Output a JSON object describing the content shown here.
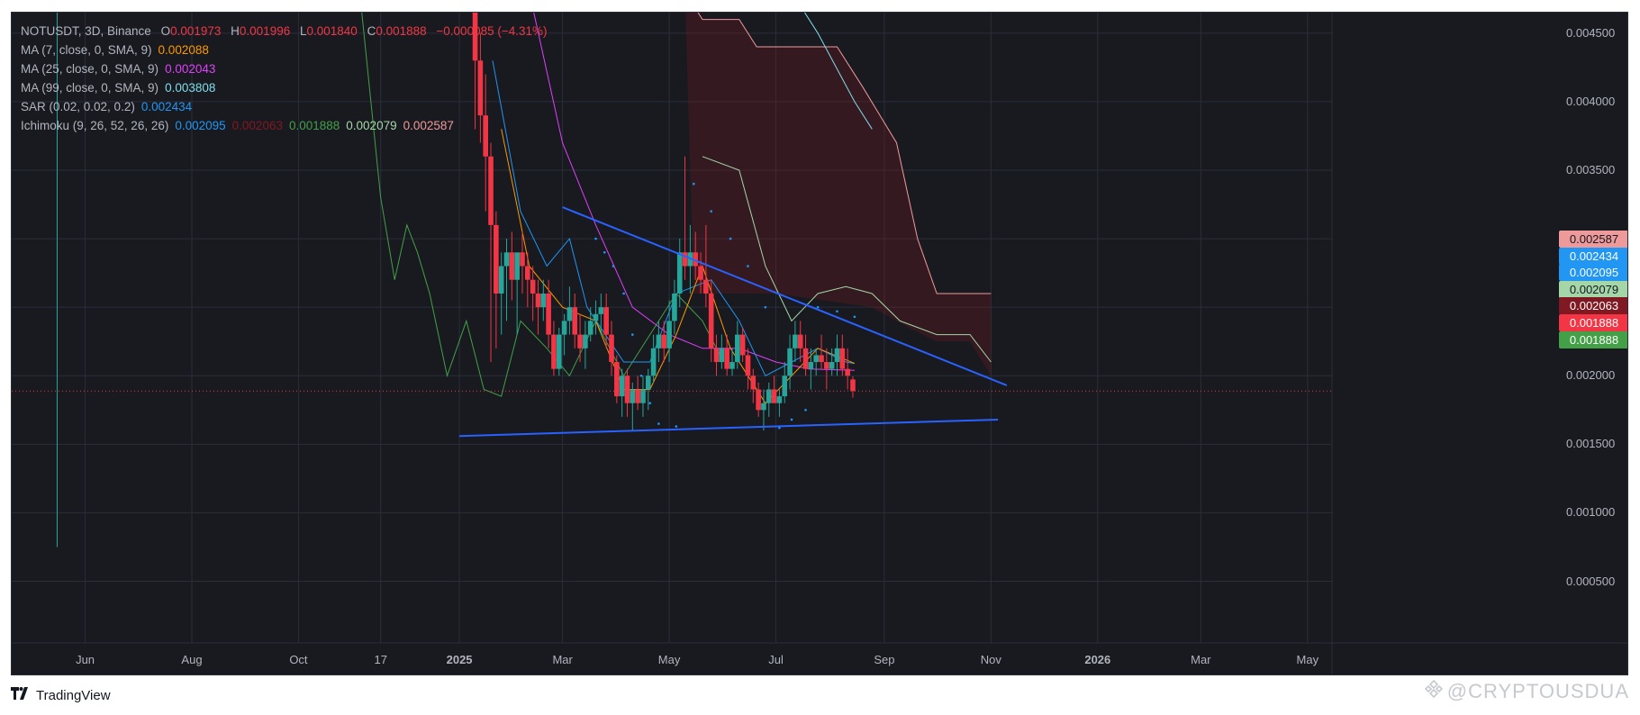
{
  "header": {
    "symbol": "NOTUSDT, 3D, Binance",
    "o_label": "O",
    "o_value": "0.001973",
    "h_label": "H",
    "h_value": "0.001996",
    "l_label": "L",
    "l_value": "0.001840",
    "c_label": "C",
    "c_value": "0.001888",
    "change": "−0.000085 (−4.31%)"
  },
  "indicators": [
    {
      "label": "MA (7, close, 0, SMA, 9)",
      "values": [
        "0.002088"
      ],
      "colors": [
        "#ff9800"
      ]
    },
    {
      "label": "MA (25, close, 0, SMA, 9)",
      "values": [
        "0.002043"
      ],
      "colors": [
        "#e040fb"
      ]
    },
    {
      "label": "MA (99, close, 0, SMA, 9)",
      "values": [
        "0.003808"
      ],
      "colors": [
        "#80deea"
      ]
    },
    {
      "label": "SAR (0.02, 0.02, 0.2)",
      "values": [
        "0.002434"
      ],
      "colors": [
        "#2196f3"
      ]
    },
    {
      "label": "Ichimoku (9, 26, 52, 26, 26)",
      "values": [
        "0.002095",
        "0.002063",
        "0.001888",
        "0.002079",
        "0.002587"
      ],
      "colors": [
        "#2196f3",
        "#801922",
        "#43a047",
        "#a5d6a7",
        "#ef9a9a"
      ]
    }
  ],
  "price_badges": [
    {
      "value": "0.002587",
      "bg": "#ef9a9a",
      "fg": "#131722"
    },
    {
      "value": "0.002434",
      "bg": "#2196f3",
      "fg": "#ffffff"
    },
    {
      "value": "0.002095",
      "bg": "#2196f3",
      "fg": "#ffffff"
    },
    {
      "value": "0.002079",
      "bg": "#a5d6a7",
      "fg": "#131722"
    },
    {
      "value": "0.002063",
      "bg": "#801922",
      "fg": "#ffffff"
    },
    {
      "value": "0.001888",
      "bg": "#f23645",
      "fg": "#ffffff"
    },
    {
      "value": "0.001888",
      "bg": "#43a047",
      "fg": "#ffffff"
    }
  ],
  "footer": {
    "brand": "TradingView"
  },
  "watermark": "@CRYPTOUSDUA",
  "colors": {
    "background": "#181a20",
    "up": "#26a69a",
    "down": "#f23645",
    "trendline": "#2962ff",
    "grid": "#2a2e39"
  },
  "chart_data": {
    "type": "candlestick",
    "y_axis": {
      "ticks": [
        "0.004500",
        "0.004000",
        "0.003500",
        "0.003000",
        "0.002500",
        "0.002000",
        "0.001500",
        "0.001000",
        "0.000500"
      ],
      "ylim": [
        5e-05,
        0.00465
      ]
    },
    "x_axis": {
      "ticks": [
        "Jun",
        "Aug",
        "Oct",
        "17",
        "2025",
        "Mar",
        "May",
        "Jul",
        "Sep",
        "Nov",
        "2026",
        "Mar",
        "May"
      ],
      "xlim": [
        "2024-04-20",
        "2026-05-15"
      ]
    },
    "last_price": 0.001888,
    "candles": [
      {
        "d": "2024-05-16",
        "o": 0.0048,
        "h": 0.0049,
        "l": 0.00075,
        "c": 0.0048
      },
      {
        "d": "2025-01-10",
        "o": 0.0047,
        "h": 0.0048,
        "l": 0.0038,
        "c": 0.0043
      },
      {
        "d": "2025-01-13",
        "o": 0.0043,
        "h": 0.0045,
        "l": 0.0037,
        "c": 0.0039
      },
      {
        "d": "2025-01-16",
        "o": 0.0039,
        "h": 0.0042,
        "l": 0.0032,
        "c": 0.0036
      },
      {
        "d": "2025-01-19",
        "o": 0.0036,
        "h": 0.0037,
        "l": 0.0021,
        "c": 0.0031
      },
      {
        "d": "2025-01-22",
        "o": 0.0031,
        "h": 0.0032,
        "l": 0.0022,
        "c": 0.0026
      },
      {
        "d": "2025-01-25",
        "o": 0.0026,
        "h": 0.0029,
        "l": 0.0023,
        "c": 0.0028
      },
      {
        "d": "2025-01-28",
        "o": 0.0028,
        "h": 0.003,
        "l": 0.0024,
        "c": 0.0029
      },
      {
        "d": "2025-01-31",
        "o": 0.0029,
        "h": 0.00305,
        "l": 0.00255,
        "c": 0.0027
      },
      {
        "d": "2025-02-03",
        "o": 0.0027,
        "h": 0.0029,
        "l": 0.0023,
        "c": 0.0029
      },
      {
        "d": "2025-02-06",
        "o": 0.0029,
        "h": 0.00305,
        "l": 0.0026,
        "c": 0.0028
      },
      {
        "d": "2025-02-09",
        "o": 0.0028,
        "h": 0.0029,
        "l": 0.0025,
        "c": 0.0027
      },
      {
        "d": "2025-02-12",
        "o": 0.0027,
        "h": 0.0028,
        "l": 0.0024,
        "c": 0.0026
      },
      {
        "d": "2025-02-15",
        "o": 0.0026,
        "h": 0.0027,
        "l": 0.0023,
        "c": 0.0025
      },
      {
        "d": "2025-02-18",
        "o": 0.0025,
        "h": 0.0027,
        "l": 0.0024,
        "c": 0.0026
      },
      {
        "d": "2025-02-21",
        "o": 0.0026,
        "h": 0.0027,
        "l": 0.0022,
        "c": 0.0023
      },
      {
        "d": "2025-02-24",
        "o": 0.0023,
        "h": 0.0024,
        "l": 0.002,
        "c": 0.00205
      },
      {
        "d": "2025-02-27",
        "o": 0.00205,
        "h": 0.00235,
        "l": 0.002,
        "c": 0.0023
      },
      {
        "d": "2025-03-02",
        "o": 0.0023,
        "h": 0.00245,
        "l": 0.00215,
        "c": 0.0024
      },
      {
        "d": "2025-03-05",
        "o": 0.0024,
        "h": 0.00265,
        "l": 0.0023,
        "c": 0.0025
      },
      {
        "d": "2025-03-08",
        "o": 0.0025,
        "h": 0.0026,
        "l": 0.0022,
        "c": 0.0023
      },
      {
        "d": "2025-03-11",
        "o": 0.0023,
        "h": 0.00245,
        "l": 0.0021,
        "c": 0.0022
      },
      {
        "d": "2025-03-14",
        "o": 0.0022,
        "h": 0.0024,
        "l": 0.00205,
        "c": 0.0023
      },
      {
        "d": "2025-03-17",
        "o": 0.0023,
        "h": 0.0025,
        "l": 0.00225,
        "c": 0.0024
      },
      {
        "d": "2025-03-20",
        "o": 0.0024,
        "h": 0.00255,
        "l": 0.0023,
        "c": 0.00245
      },
      {
        "d": "2025-03-23",
        "o": 0.00245,
        "h": 0.0026,
        "l": 0.0023,
        "c": 0.0025
      },
      {
        "d": "2025-03-26",
        "o": 0.0025,
        "h": 0.0026,
        "l": 0.0022,
        "c": 0.0023
      },
      {
        "d": "2025-03-29",
        "o": 0.0023,
        "h": 0.0024,
        "l": 0.002,
        "c": 0.0021
      },
      {
        "d": "2025-04-01",
        "o": 0.0021,
        "h": 0.00215,
        "l": 0.0018,
        "c": 0.00185
      },
      {
        "d": "2025-04-04",
        "o": 0.00185,
        "h": 0.00205,
        "l": 0.0017,
        "c": 0.002
      },
      {
        "d": "2025-04-07",
        "o": 0.002,
        "h": 0.00205,
        "l": 0.0017,
        "c": 0.0018
      },
      {
        "d": "2025-04-10",
        "o": 0.0018,
        "h": 0.00195,
        "l": 0.0016,
        "c": 0.0019
      },
      {
        "d": "2025-04-13",
        "o": 0.0019,
        "h": 0.002,
        "l": 0.00175,
        "c": 0.0018
      },
      {
        "d": "2025-04-16",
        "o": 0.0018,
        "h": 0.002,
        "l": 0.0017,
        "c": 0.0019
      },
      {
        "d": "2025-04-19",
        "o": 0.0019,
        "h": 0.00205,
        "l": 0.00175,
        "c": 0.002
      },
      {
        "d": "2025-04-22",
        "o": 0.002,
        "h": 0.0023,
        "l": 0.00195,
        "c": 0.0022
      },
      {
        "d": "2025-04-25",
        "o": 0.0022,
        "h": 0.0024,
        "l": 0.0021,
        "c": 0.0023
      },
      {
        "d": "2025-04-28",
        "o": 0.0023,
        "h": 0.0024,
        "l": 0.0021,
        "c": 0.0022
      },
      {
        "d": "2025-05-01",
        "o": 0.0022,
        "h": 0.00255,
        "l": 0.0021,
        "c": 0.0024
      },
      {
        "d": "2025-05-04",
        "o": 0.0024,
        "h": 0.0027,
        "l": 0.0023,
        "c": 0.0026
      },
      {
        "d": "2025-05-07",
        "o": 0.0026,
        "h": 0.003,
        "l": 0.0025,
        "c": 0.0029
      },
      {
        "d": "2025-05-10",
        "o": 0.0029,
        "h": 0.0036,
        "l": 0.0027,
        "c": 0.0028
      },
      {
        "d": "2025-05-13",
        "o": 0.0028,
        "h": 0.0031,
        "l": 0.0026,
        "c": 0.0029
      },
      {
        "d": "2025-05-16",
        "o": 0.0029,
        "h": 0.00305,
        "l": 0.0027,
        "c": 0.0028
      },
      {
        "d": "2025-05-19",
        "o": 0.0028,
        "h": 0.0029,
        "l": 0.0026,
        "c": 0.0027
      },
      {
        "d": "2025-05-22",
        "o": 0.0027,
        "h": 0.0031,
        "l": 0.0025,
        "c": 0.0026
      },
      {
        "d": "2025-05-25",
        "o": 0.0026,
        "h": 0.0027,
        "l": 0.0021,
        "c": 0.0022
      },
      {
        "d": "2025-05-28",
        "o": 0.0022,
        "h": 0.0023,
        "l": 0.002,
        "c": 0.0021
      },
      {
        "d": "2025-05-31",
        "o": 0.0021,
        "h": 0.0023,
        "l": 0.00205,
        "c": 0.0022
      },
      {
        "d": "2025-06-03",
        "o": 0.0022,
        "h": 0.0023,
        "l": 0.002,
        "c": 0.00205
      },
      {
        "d": "2025-06-06",
        "o": 0.00205,
        "h": 0.0022,
        "l": 0.002,
        "c": 0.0021
      },
      {
        "d": "2025-06-09",
        "o": 0.0021,
        "h": 0.0024,
        "l": 0.00205,
        "c": 0.0023
      },
      {
        "d": "2025-06-12",
        "o": 0.0023,
        "h": 0.00235,
        "l": 0.0021,
        "c": 0.00215
      },
      {
        "d": "2025-06-15",
        "o": 0.00215,
        "h": 0.0022,
        "l": 0.0019,
        "c": 0.002
      },
      {
        "d": "2025-06-18",
        "o": 0.002,
        "h": 0.00205,
        "l": 0.0018,
        "c": 0.0019
      },
      {
        "d": "2025-06-21",
        "o": 0.0019,
        "h": 0.00195,
        "l": 0.0017,
        "c": 0.00175
      },
      {
        "d": "2025-06-24",
        "o": 0.00175,
        "h": 0.0019,
        "l": 0.0016,
        "c": 0.0018
      },
      {
        "d": "2025-06-27",
        "o": 0.0018,
        "h": 0.00195,
        "l": 0.0017,
        "c": 0.0019
      },
      {
        "d": "2025-06-30",
        "o": 0.0019,
        "h": 0.002,
        "l": 0.0018,
        "c": 0.0018
      },
      {
        "d": "2025-07-03",
        "o": 0.0018,
        "h": 0.0019,
        "l": 0.0017,
        "c": 0.00185
      },
      {
        "d": "2025-07-06",
        "o": 0.00185,
        "h": 0.0021,
        "l": 0.0018,
        "c": 0.002
      },
      {
        "d": "2025-07-09",
        "o": 0.002,
        "h": 0.0023,
        "l": 0.0019,
        "c": 0.0022
      },
      {
        "d": "2025-07-12",
        "o": 0.0022,
        "h": 0.0024,
        "l": 0.0021,
        "c": 0.0023
      },
      {
        "d": "2025-07-15",
        "o": 0.0023,
        "h": 0.0024,
        "l": 0.0021,
        "c": 0.0022
      },
      {
        "d": "2025-07-18",
        "o": 0.0022,
        "h": 0.0023,
        "l": 0.002,
        "c": 0.00205
      },
      {
        "d": "2025-07-21",
        "o": 0.00205,
        "h": 0.0022,
        "l": 0.0019,
        "c": 0.0021
      },
      {
        "d": "2025-07-24",
        "o": 0.0021,
        "h": 0.0022,
        "l": 0.002,
        "c": 0.00215
      },
      {
        "d": "2025-07-27",
        "o": 0.00215,
        "h": 0.0023,
        "l": 0.00205,
        "c": 0.0021
      },
      {
        "d": "2025-07-30",
        "o": 0.0021,
        "h": 0.0022,
        "l": 0.0019,
        "c": 0.00205
      },
      {
        "d": "2025-08-02",
        "o": 0.00205,
        "h": 0.0022,
        "l": 0.002,
        "c": 0.0021
      },
      {
        "d": "2025-08-05",
        "o": 0.0021,
        "h": 0.0023,
        "l": 0.002,
        "c": 0.0022
      },
      {
        "d": "2025-08-08",
        "o": 0.0022,
        "h": 0.0023,
        "l": 0.002,
        "c": 0.00205
      },
      {
        "d": "2025-08-11",
        "o": 0.00205,
        "h": 0.0022,
        "l": 0.0019,
        "c": 0.002
      },
      {
        "d": "2025-08-14",
        "o": 0.001973,
        "h": 0.001996,
        "l": 0.00184,
        "c": 0.001888
      }
    ],
    "trendlines": [
      {
        "from": {
          "d": "2025-03-01",
          "v": 0.00323
        },
        "to": {
          "d": "2025-11-10",
          "v": 0.00193
        }
      },
      {
        "from": {
          "d": "2025-01-01",
          "v": 0.00156
        },
        "to": {
          "d": "2025-11-05",
          "v": 0.00168
        }
      }
    ]
  }
}
